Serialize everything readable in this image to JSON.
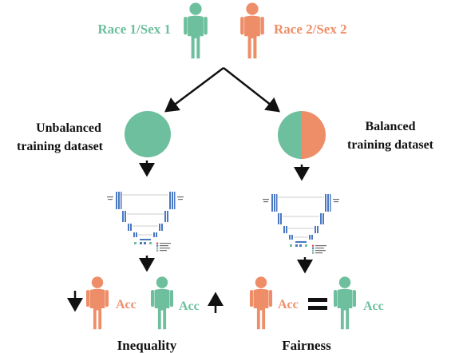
{
  "top": {
    "group1_label": "Race 1/Sex 1",
    "group2_label": "Race 2/Sex 2"
  },
  "left_branch": {
    "dataset_label_line1": "Unbalanced",
    "dataset_label_line2": "training dataset",
    "acc_label_1": "Acc",
    "acc_label_2": "Acc",
    "outcome": "Inequality"
  },
  "right_branch": {
    "dataset_label_line1": "Balanced",
    "dataset_label_line2": "training dataset",
    "acc_label_1": "Acc",
    "acc_label_2": "Acc",
    "outcome": "Fairness"
  },
  "colors": {
    "group1": "#6dbf9d",
    "group2": "#ee8e69",
    "arrow": "#111111",
    "network_blue": "#4a78c2"
  },
  "icons": {
    "person": "person-icon",
    "down_arrow": "down-arrow-icon",
    "up_arrow": "up-arrow-icon",
    "equals": "equals-sign-icon",
    "network": "unet-architecture-icon"
  }
}
